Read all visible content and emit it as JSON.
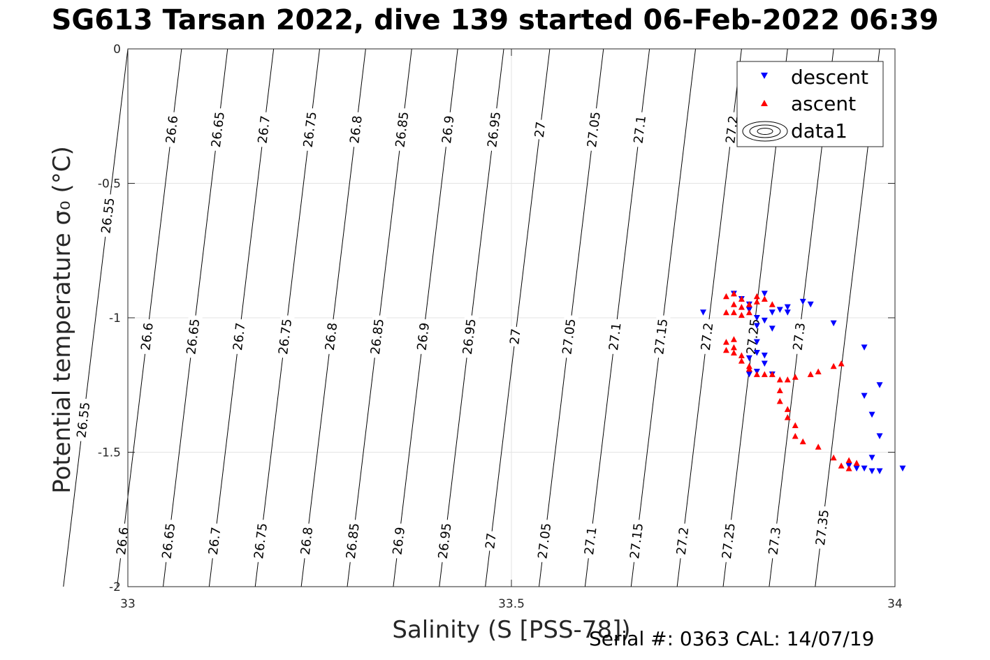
{
  "title": "SG613 Tarsan 2022, dive 139 started 06-Feb-2022 06:39",
  "footer": {
    "serial": "Serial #: 0363  CAL: 14/07/19"
  },
  "chart_data": {
    "type": "scatter",
    "title": "SG613 Tarsan 2022, dive 139 started 06-Feb-2022 06:39",
    "xlabel": "Salinity (S [PSS-78])",
    "ylabel": "Potential temperature σ₀ (°C)",
    "xlim": [
      33,
      34
    ],
    "ylim": [
      -2,
      0
    ],
    "x_ticks": [
      "33",
      "33.5",
      "34"
    ],
    "y_ticks": [
      "0",
      "-0.5",
      "-1",
      "-1.5",
      "-2"
    ],
    "grid": true,
    "legend": {
      "position": "top-right",
      "entries": [
        "descent",
        "ascent",
        "data1"
      ]
    },
    "contours": {
      "name": "data1",
      "levels": [
        26.55,
        26.6,
        26.65,
        26.7,
        26.75,
        26.8,
        26.85,
        26.9,
        26.95,
        27,
        27.05,
        27.1,
        27.15,
        27.2,
        27.25,
        27.3,
        27.35
      ],
      "level_labels": [
        "26.55",
        "26.6",
        "26.65",
        "26.7",
        "26.75",
        "26.8",
        "26.85",
        "26.9",
        "26.95",
        "27",
        "27.05",
        "27.1",
        "27.15",
        "27.2",
        "27.25",
        "27.3",
        "27.35"
      ],
      "salinity_at_0C": [
        33.0,
        33.07,
        33.13,
        33.19,
        33.25,
        33.31,
        33.37,
        33.43,
        33.49,
        33.55,
        33.62,
        33.68,
        33.74,
        33.8,
        33.86,
        33.92,
        33.98
      ],
      "salinity_per_degC": 0.042,
      "labels_upper": [
        {
          "level": "26.55",
          "y": -0.62
        },
        {
          "level": "26.6",
          "y": -0.3
        },
        {
          "level": "26.65",
          "y": -0.3
        },
        {
          "level": "26.7",
          "y": -0.3
        },
        {
          "level": "26.75",
          "y": -0.3
        },
        {
          "level": "26.8",
          "y": -0.3
        },
        {
          "level": "26.85",
          "y": -0.3
        },
        {
          "level": "26.9",
          "y": -0.3
        },
        {
          "level": "26.95",
          "y": -0.3
        },
        {
          "level": "27",
          "y": -0.3
        },
        {
          "level": "27.05",
          "y": -0.3
        },
        {
          "level": "27.1",
          "y": -0.3
        },
        {
          "level": "27.2",
          "y": -0.3
        },
        {
          "level": "27.3",
          "y": -0.3
        }
      ],
      "labels_middle": [
        {
          "level": "26.55",
          "y": -1.38
        },
        {
          "level": "26.6",
          "y": -1.07
        },
        {
          "level": "26.65",
          "y": -1.07
        },
        {
          "level": "26.7",
          "y": -1.07
        },
        {
          "level": "26.75",
          "y": -1.07
        },
        {
          "level": "26.8",
          "y": -1.07
        },
        {
          "level": "26.85",
          "y": -1.07
        },
        {
          "level": "26.9",
          "y": -1.07
        },
        {
          "level": "26.95",
          "y": -1.07
        },
        {
          "level": "27",
          "y": -1.07
        },
        {
          "level": "27.05",
          "y": -1.07
        },
        {
          "level": "27.1",
          "y": -1.07
        },
        {
          "level": "27.15",
          "y": -1.07
        },
        {
          "level": "27.2",
          "y": -1.07
        },
        {
          "level": "27.25",
          "y": -1.07
        },
        {
          "level": "27.3",
          "y": -1.07
        }
      ],
      "labels_lower": [
        {
          "level": "26.6",
          "y": -1.83
        },
        {
          "level": "26.65",
          "y": -1.83
        },
        {
          "level": "26.7",
          "y": -1.83
        },
        {
          "level": "26.75",
          "y": -1.83
        },
        {
          "level": "26.8",
          "y": -1.83
        },
        {
          "level": "26.85",
          "y": -1.83
        },
        {
          "level": "26.9",
          "y": -1.83
        },
        {
          "level": "26.95",
          "y": -1.83
        },
        {
          "level": "27",
          "y": -1.83
        },
        {
          "level": "27.05",
          "y": -1.83
        },
        {
          "level": "27.1",
          "y": -1.83
        },
        {
          "level": "27.15",
          "y": -1.83
        },
        {
          "level": "27.2",
          "y": -1.83
        },
        {
          "level": "27.25",
          "y": -1.83
        },
        {
          "level": "27.3",
          "y": -1.83
        },
        {
          "level": "27.35",
          "y": -1.78
        }
      ]
    },
    "series": [
      {
        "name": "descent",
        "color": "#0000ff",
        "marker": "triangle-down",
        "points": [
          [
            33.75,
            -0.98
          ],
          [
            33.79,
            -0.91
          ],
          [
            33.8,
            -0.93
          ],
          [
            33.81,
            -0.95
          ],
          [
            33.81,
            -0.97
          ],
          [
            33.82,
            -1.0
          ],
          [
            33.82,
            -1.03
          ],
          [
            33.83,
            -0.91
          ],
          [
            33.83,
            -1.01
          ],
          [
            33.84,
            -0.98
          ],
          [
            33.85,
            -0.97
          ],
          [
            33.84,
            -1.04
          ],
          [
            33.86,
            -0.96
          ],
          [
            33.82,
            -1.09
          ],
          [
            33.82,
            -1.13
          ],
          [
            33.83,
            -1.14
          ],
          [
            33.81,
            -1.15
          ],
          [
            33.83,
            -1.17
          ],
          [
            33.82,
            -1.2
          ],
          [
            33.81,
            -1.21
          ],
          [
            33.84,
            -1.21
          ],
          [
            33.86,
            -0.98
          ],
          [
            33.88,
            -0.94
          ],
          [
            33.89,
            -0.95
          ],
          [
            33.92,
            -1.02
          ],
          [
            33.96,
            -1.11
          ],
          [
            33.98,
            -1.25
          ],
          [
            33.96,
            -1.29
          ],
          [
            33.97,
            -1.36
          ],
          [
            33.98,
            -1.44
          ],
          [
            33.97,
            -1.52
          ],
          [
            33.96,
            -1.56
          ],
          [
            33.97,
            -1.57
          ],
          [
            33.98,
            -1.57
          ],
          [
            34.01,
            -1.56
          ],
          [
            33.94,
            -1.55
          ],
          [
            33.95,
            -1.56
          ]
        ]
      },
      {
        "name": "ascent",
        "color": "#ff0000",
        "marker": "triangle-up",
        "points": [
          [
            33.78,
            -0.92
          ],
          [
            33.79,
            -0.91
          ],
          [
            33.79,
            -0.95
          ],
          [
            33.8,
            -0.93
          ],
          [
            33.8,
            -0.96
          ],
          [
            33.79,
            -0.98
          ],
          [
            33.78,
            -0.98
          ],
          [
            33.81,
            -0.95
          ],
          [
            33.82,
            -0.94
          ],
          [
            33.82,
            -0.92
          ],
          [
            33.83,
            -0.93
          ],
          [
            33.84,
            -0.95
          ],
          [
            33.8,
            -0.99
          ],
          [
            33.81,
            -0.98
          ],
          [
            33.79,
            -1.08
          ],
          [
            33.78,
            -1.09
          ],
          [
            33.79,
            -1.11
          ],
          [
            33.79,
            -1.13
          ],
          [
            33.78,
            -1.12
          ],
          [
            33.8,
            -1.14
          ],
          [
            33.8,
            -1.16
          ],
          [
            33.81,
            -1.18
          ],
          [
            33.81,
            -1.19
          ],
          [
            33.82,
            -1.21
          ],
          [
            33.83,
            -1.21
          ],
          [
            33.84,
            -1.21
          ],
          [
            33.85,
            -1.23
          ],
          [
            33.86,
            -1.23
          ],
          [
            33.87,
            -1.22
          ],
          [
            33.89,
            -1.21
          ],
          [
            33.9,
            -1.2
          ],
          [
            33.92,
            -1.18
          ],
          [
            33.93,
            -1.17
          ],
          [
            33.85,
            -1.27
          ],
          [
            33.85,
            -1.31
          ],
          [
            33.86,
            -1.34
          ],
          [
            33.86,
            -1.37
          ],
          [
            33.87,
            -1.4
          ],
          [
            33.87,
            -1.44
          ],
          [
            33.88,
            -1.46
          ],
          [
            33.9,
            -1.48
          ],
          [
            33.92,
            -1.52
          ],
          [
            33.93,
            -1.55
          ],
          [
            33.94,
            -1.53
          ],
          [
            33.95,
            -1.54
          ],
          [
            33.94,
            -1.56
          ]
        ]
      }
    ]
  }
}
